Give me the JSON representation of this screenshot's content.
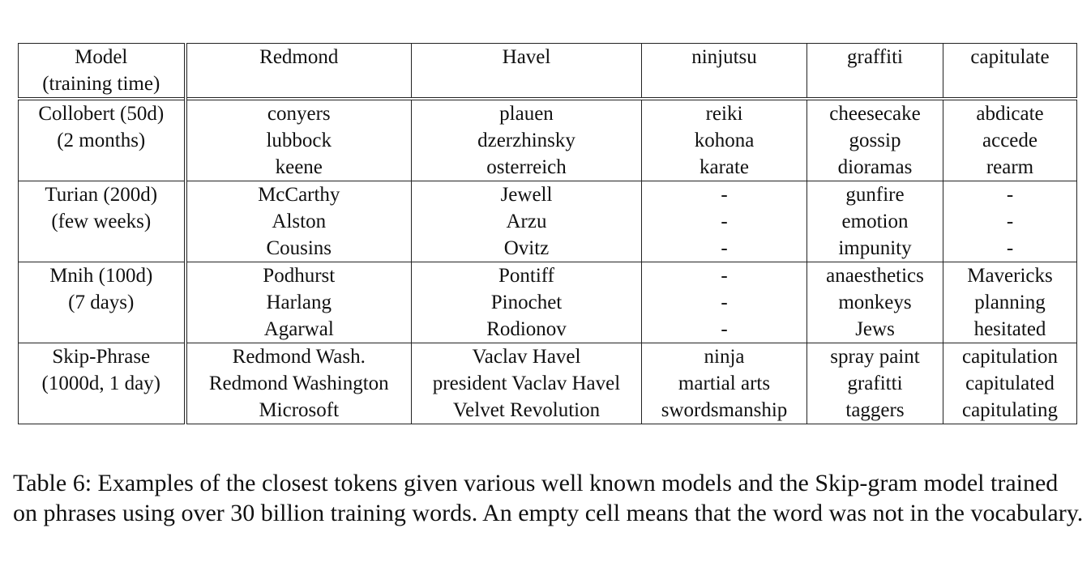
{
  "table": {
    "columns": [
      "Redmond",
      "Havel",
      "ninjutsu",
      "graffiti",
      "capitulate"
    ],
    "model_header": [
      "Model",
      "(training time)"
    ],
    "rows": [
      {
        "model": [
          "Collobert (50d)",
          "(2 months)"
        ],
        "cells": [
          [
            "conyers",
            "lubbock",
            "keene"
          ],
          [
            "plauen",
            "dzerzhinsky",
            "osterreich"
          ],
          [
            "reiki",
            "kohona",
            "karate"
          ],
          [
            "cheesecake",
            "gossip",
            "dioramas"
          ],
          [
            "abdicate",
            "accede",
            "rearm"
          ]
        ]
      },
      {
        "model": [
          "Turian (200d)",
          "(few weeks)"
        ],
        "cells": [
          [
            "McCarthy",
            "Alston",
            "Cousins"
          ],
          [
            "Jewell",
            "Arzu",
            "Ovitz"
          ],
          [
            "-",
            "-",
            "-"
          ],
          [
            "gunfire",
            "emotion",
            "impunity"
          ],
          [
            "-",
            "-",
            "-"
          ]
        ]
      },
      {
        "model": [
          "Mnih (100d)",
          "(7 days)"
        ],
        "cells": [
          [
            "Podhurst",
            "Harlang",
            "Agarwal"
          ],
          [
            "Pontiff",
            "Pinochet",
            "Rodionov"
          ],
          [
            "-",
            "-",
            "-"
          ],
          [
            "anaesthetics",
            "monkeys",
            "Jews"
          ],
          [
            "Mavericks",
            "planning",
            "hesitated"
          ]
        ]
      },
      {
        "model": [
          "Skip-Phrase",
          "(1000d, 1 day)"
        ],
        "cells": [
          [
            "Redmond Wash.",
            "Redmond Washington",
            "Microsoft"
          ],
          [
            "Vaclav Havel",
            "president Vaclav Havel",
            "Velvet Revolution"
          ],
          [
            "ninja",
            "martial arts",
            "swordsmanship"
          ],
          [
            "spray paint",
            "grafitti",
            "taggers"
          ],
          [
            "capitulation",
            "capitulated",
            "capitulating"
          ]
        ]
      }
    ]
  },
  "caption": "Table 6: Examples of the closest tokens given various well known models and the Skip-gram model trained on phrases using over 30 billion training words. An empty cell means that the word was not in the vocabulary."
}
